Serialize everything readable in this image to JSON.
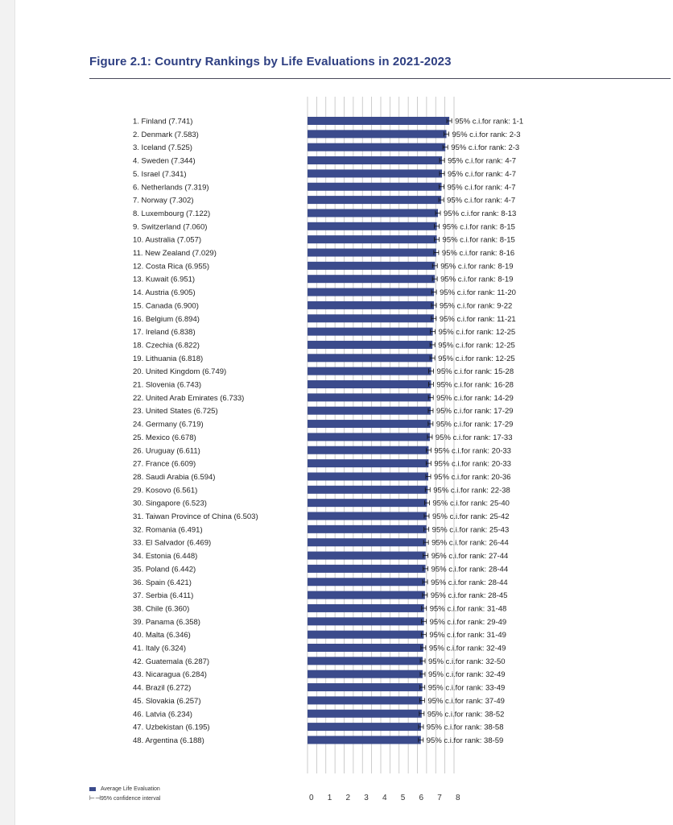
{
  "figure": {
    "title": "Figure 2.1: Country Rankings by Life Evaluations in 2021-2023"
  },
  "legend": {
    "bar_label": "Average Life Evaluation",
    "ci_label": "95% confidence interval",
    "ci_symbol": "⊢⊣"
  },
  "colors": {
    "bar": "#3b4b8c",
    "title": "#2e3f82",
    "grid": "#bfbfbf"
  },
  "chart_data": {
    "type": "bar",
    "orientation": "horizontal",
    "title": "Figure 2.1: Country Rankings by Life Evaluations in 2021-2023",
    "xlim": [
      0,
      8
    ],
    "x_ticks": [
      0,
      1,
      2,
      3,
      4,
      5,
      6,
      7,
      8
    ],
    "grid": true,
    "legend_position": "bottom-left",
    "legend": [
      "Average Life Evaluation",
      "95% confidence interval"
    ],
    "rows": [
      {
        "label": "1.  Finland (7.741)",
        "value": 7.741,
        "ci_text": "95% c.i.for rank: 1-1"
      },
      {
        "label": "2.  Denmark (7.583)",
        "value": 7.583,
        "ci_text": "95% c.i.for rank: 2-3"
      },
      {
        "label": "3.  Iceland (7.525)",
        "value": 7.525,
        "ci_text": "95% c.i.for rank: 2-3"
      },
      {
        "label": "4.  Sweden (7.344)",
        "value": 7.344,
        "ci_text": "95% c.i.for rank: 4-7"
      },
      {
        "label": "5.  Israel (7.341)",
        "value": 7.341,
        "ci_text": "95% c.i.for rank: 4-7"
      },
      {
        "label": "6.  Netherlands (7.319)",
        "value": 7.319,
        "ci_text": "95% c.i.for rank: 4-7"
      },
      {
        "label": "7.  Norway (7.302)",
        "value": 7.302,
        "ci_text": "95% c.i.for rank: 4-7"
      },
      {
        "label": "8.  Luxembourg (7.122)",
        "value": 7.122,
        "ci_text": "95% c.i.for rank: 8-13"
      },
      {
        "label": "9.  Switzerland (7.060)",
        "value": 7.06,
        "ci_text": "95% c.i.for rank: 8-15"
      },
      {
        "label": "10. Australia (7.057)",
        "value": 7.057,
        "ci_text": "95% c.i.for rank: 8-15"
      },
      {
        "label": "11. New Zealand (7.029)",
        "value": 7.029,
        "ci_text": "95% c.i.for rank: 8-16"
      },
      {
        "label": "12. Costa Rica (6.955)",
        "value": 6.955,
        "ci_text": "95% c.i.for rank: 8-19"
      },
      {
        "label": "13. Kuwait (6.951)",
        "value": 6.951,
        "ci_text": "95% c.i.for rank: 8-19"
      },
      {
        "label": "14. Austria (6.905)",
        "value": 6.905,
        "ci_text": "95% c.i.for rank: 11-20"
      },
      {
        "label": "15. Canada (6.900)",
        "value": 6.9,
        "ci_text": "95% c.i.for rank: 9-22"
      },
      {
        "label": "16. Belgium (6.894)",
        "value": 6.894,
        "ci_text": "95% c.i.for rank: 11-21"
      },
      {
        "label": "17. Ireland (6.838)",
        "value": 6.838,
        "ci_text": "95% c.i.for rank: 12-25"
      },
      {
        "label": "18. Czechia (6.822)",
        "value": 6.822,
        "ci_text": "95% c.i.for rank: 12-25"
      },
      {
        "label": "19. Lithuania (6.818)",
        "value": 6.818,
        "ci_text": "95% c.i.for rank: 12-25"
      },
      {
        "label": "20. United Kingdom (6.749)",
        "value": 6.749,
        "ci_text": "95% c.i.for rank: 15-28"
      },
      {
        "label": "21. Slovenia (6.743)",
        "value": 6.743,
        "ci_text": "95% c.i.for rank: 16-28"
      },
      {
        "label": "22. United Arab Emirates (6.733)",
        "value": 6.733,
        "ci_text": "95% c.i.for rank: 14-29"
      },
      {
        "label": "23. United States (6.725)",
        "value": 6.725,
        "ci_text": "95% c.i.for rank: 17-29"
      },
      {
        "label": "24. Germany (6.719)",
        "value": 6.719,
        "ci_text": "95% c.i.for rank: 17-29"
      },
      {
        "label": "25. Mexico (6.678)",
        "value": 6.678,
        "ci_text": "95% c.i.for rank: 17-33"
      },
      {
        "label": "26. Uruguay (6.611)",
        "value": 6.611,
        "ci_text": "95% c.i.for rank: 20-33"
      },
      {
        "label": "27. France (6.609)",
        "value": 6.609,
        "ci_text": "95% c.i.for rank: 20-33"
      },
      {
        "label": "28. Saudi Arabia (6.594)",
        "value": 6.594,
        "ci_text": "95% c.i.for rank: 20-36"
      },
      {
        "label": "29. Kosovo (6.561)",
        "value": 6.561,
        "ci_text": "95% c.i.for rank: 22-38"
      },
      {
        "label": "30. Singapore (6.523)",
        "value": 6.523,
        "ci_text": "95% c.i.for rank: 25-40"
      },
      {
        "label": "31. Taiwan Province of China (6.503)",
        "value": 6.503,
        "ci_text": "95% c.i.for rank: 25-42"
      },
      {
        "label": "32. Romania (6.491)",
        "value": 6.491,
        "ci_text": "95% c.i.for rank: 25-43"
      },
      {
        "label": "33. El Salvador (6.469)",
        "value": 6.469,
        "ci_text": "95% c.i.for rank: 26-44"
      },
      {
        "label": "34. Estonia (6.448)",
        "value": 6.448,
        "ci_text": "95% c.i.for rank: 27-44"
      },
      {
        "label": "35. Poland (6.442)",
        "value": 6.442,
        "ci_text": "95% c.i.for rank: 28-44"
      },
      {
        "label": "36. Spain (6.421)",
        "value": 6.421,
        "ci_text": "95% c.i.for rank: 28-44"
      },
      {
        "label": "37. Serbia (6.411)",
        "value": 6.411,
        "ci_text": "95% c.i.for rank: 28-45"
      },
      {
        "label": "38. Chile (6.360)",
        "value": 6.36,
        "ci_text": "95% c.i.for rank: 31-48"
      },
      {
        "label": "39. Panama (6.358)",
        "value": 6.358,
        "ci_text": "95% c.i.for rank: 29-49"
      },
      {
        "label": "40. Malta (6.346)",
        "value": 6.346,
        "ci_text": "95% c.i.for rank: 31-49"
      },
      {
        "label": "41. Italy (6.324)",
        "value": 6.324,
        "ci_text": "95% c.i.for rank: 32-49"
      },
      {
        "label": "42. Guatemala (6.287)",
        "value": 6.287,
        "ci_text": "95% c.i.for rank: 32-50"
      },
      {
        "label": "43. Nicaragua (6.284)",
        "value": 6.284,
        "ci_text": "95% c.i.for rank: 32-49"
      },
      {
        "label": "44. Brazil (6.272)",
        "value": 6.272,
        "ci_text": "95% c.i.for rank: 33-49"
      },
      {
        "label": "45. Slovakia (6.257)",
        "value": 6.257,
        "ci_text": "95% c.i.for rank: 37-49"
      },
      {
        "label": "46. Latvia (6.234)",
        "value": 6.234,
        "ci_text": "95% c.i.for rank: 38-52"
      },
      {
        "label": "47. Uzbekistan (6.195)",
        "value": 6.195,
        "ci_text": "95% c.i.for rank: 38-58"
      },
      {
        "label": "48. Argentina (6.188)",
        "value": 6.188,
        "ci_text": "95% c.i.for rank: 38-59"
      }
    ]
  }
}
